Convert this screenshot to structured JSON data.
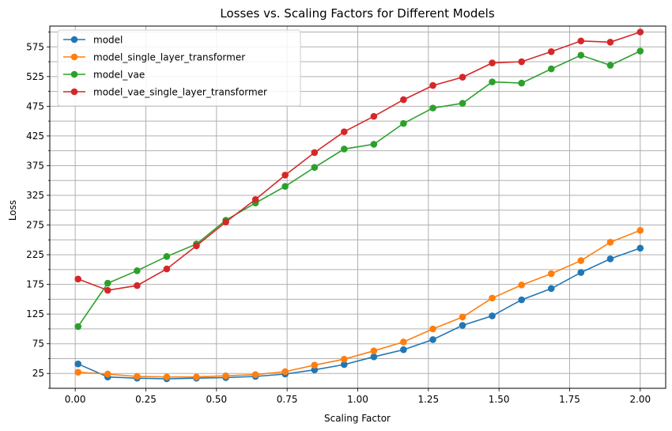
{
  "chart_data": {
    "type": "line",
    "title": "Losses vs. Scaling Factors for Different Models",
    "xlabel": "Scaling Factor",
    "ylabel": "Loss",
    "xlim": [
      -0.09,
      2.09
    ],
    "ylim": [
      0,
      610
    ],
    "x_ticks": [
      0.0,
      0.25,
      0.5,
      0.75,
      1.0,
      1.25,
      1.5,
      1.75,
      2.0
    ],
    "x_tick_labels": [
      "0.00",
      "0.25",
      "0.50",
      "0.75",
      "1.00",
      "1.25",
      "1.50",
      "1.75",
      "2.00"
    ],
    "y_ticks": [
      25,
      75,
      125,
      175,
      225,
      275,
      325,
      375,
      425,
      475,
      525,
      575
    ],
    "y_tick_labels": [
      "25",
      "75",
      "125",
      "175",
      "225",
      "275",
      "325",
      "375",
      "425",
      "475",
      "525",
      "575"
    ],
    "y_minor_ticks": [
      0,
      50,
      100,
      150,
      200,
      250,
      300,
      350,
      400,
      450,
      500,
      550,
      600
    ],
    "grid": true,
    "legend_position": "top-left",
    "x": [
      0.01,
      0.115,
      0.219,
      0.324,
      0.429,
      0.533,
      0.638,
      0.743,
      0.847,
      0.952,
      1.057,
      1.162,
      1.266,
      1.371,
      1.476,
      1.58,
      1.685,
      1.79,
      1.894,
      2.0
    ],
    "series": [
      {
        "name": "model",
        "color": "#1f77b4",
        "values": [
          41,
          19,
          17,
          16,
          17,
          18,
          20,
          24,
          31,
          40,
          53,
          65,
          82,
          106,
          122,
          149,
          168,
          195,
          218,
          236
        ]
      },
      {
        "name": "model_single_layer_transformer",
        "color": "#ff7f0e",
        "values": [
          27,
          24,
          20,
          19,
          19,
          21,
          23,
          28,
          39,
          49,
          63,
          78,
          100,
          120,
          152,
          174,
          193,
          215,
          246,
          266
        ]
      },
      {
        "name": "model_vae",
        "color": "#2ca02c",
        "values": [
          104,
          177,
          198,
          222,
          243,
          283,
          312,
          340,
          372,
          403,
          411,
          446,
          472,
          480,
          516,
          514,
          538,
          561,
          544,
          568
        ]
      },
      {
        "name": "model_vae_single_layer_transformer",
        "color": "#d62728",
        "values": [
          184,
          165,
          173,
          201,
          240,
          280,
          318,
          359,
          397,
          432,
          458,
          486,
          510,
          524,
          548,
          550,
          567,
          585,
          583,
          600
        ]
      }
    ]
  }
}
